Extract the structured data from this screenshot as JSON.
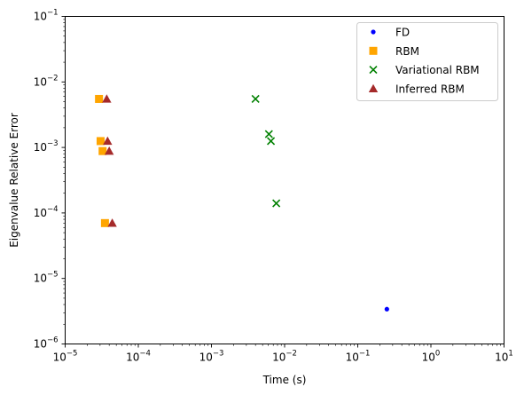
{
  "chart_data": {
    "type": "scatter",
    "xlabel": "Time (s)",
    "ylabel": "Eigenvalue Relative Error",
    "xscale": "log",
    "yscale": "log",
    "xlim": [
      1e-05,
      10
    ],
    "ylim": [
      1e-06,
      0.1
    ],
    "grid": false,
    "legend_position": "top-right",
    "x_ticks": [
      {
        "value": 1e-05,
        "mantissa": "10",
        "exp": "−5"
      },
      {
        "value": 0.0001,
        "mantissa": "10",
        "exp": "−4"
      },
      {
        "value": 0.001,
        "mantissa": "10",
        "exp": "−3"
      },
      {
        "value": 0.01,
        "mantissa": "10",
        "exp": "−2"
      },
      {
        "value": 0.1,
        "mantissa": "10",
        "exp": "−1"
      },
      {
        "value": 1,
        "mantissa": "10",
        "exp": "0"
      },
      {
        "value": 10,
        "mantissa": "10",
        "exp": "1"
      }
    ],
    "y_ticks": [
      {
        "value": 1e-06,
        "mantissa": "10",
        "exp": "−6"
      },
      {
        "value": 1e-05,
        "mantissa": "10",
        "exp": "−5"
      },
      {
        "value": 0.0001,
        "mantissa": "10",
        "exp": "−4"
      },
      {
        "value": 0.001,
        "mantissa": "10",
        "exp": "−3"
      },
      {
        "value": 0.01,
        "mantissa": "10",
        "exp": "−2"
      },
      {
        "value": 0.1,
        "mantissa": "10",
        "exp": "−1"
      }
    ],
    "series": [
      {
        "name": "FD",
        "marker": "dot",
        "color": "#0000ff",
        "points": [
          {
            "x": 0.25,
            "y": 3.4e-06
          }
        ]
      },
      {
        "name": "RBM",
        "marker": "square",
        "color": "#ffa500",
        "points": [
          {
            "x": 2.9e-05,
            "y": 0.0055
          },
          {
            "x": 3.05e-05,
            "y": 0.00125
          },
          {
            "x": 3.25e-05,
            "y": 0.00088
          },
          {
            "x": 3.5e-05,
            "y": 7e-05
          }
        ]
      },
      {
        "name": "Variational RBM",
        "marker": "x",
        "color": "#008000",
        "points": [
          {
            "x": 0.004,
            "y": 0.0055
          },
          {
            "x": 0.0061,
            "y": 0.0016
          },
          {
            "x": 0.0065,
            "y": 0.00125
          },
          {
            "x": 0.0077,
            "y": 0.00014
          }
        ]
      },
      {
        "name": "Inferred RBM",
        "marker": "triangle",
        "color": "#a52a2a",
        "points": [
          {
            "x": 3.7e-05,
            "y": 0.0055
          },
          {
            "x": 3.8e-05,
            "y": 0.00125
          },
          {
            "x": 4e-05,
            "y": 0.00088
          },
          {
            "x": 4.4e-05,
            "y": 7e-05
          }
        ]
      }
    ]
  }
}
